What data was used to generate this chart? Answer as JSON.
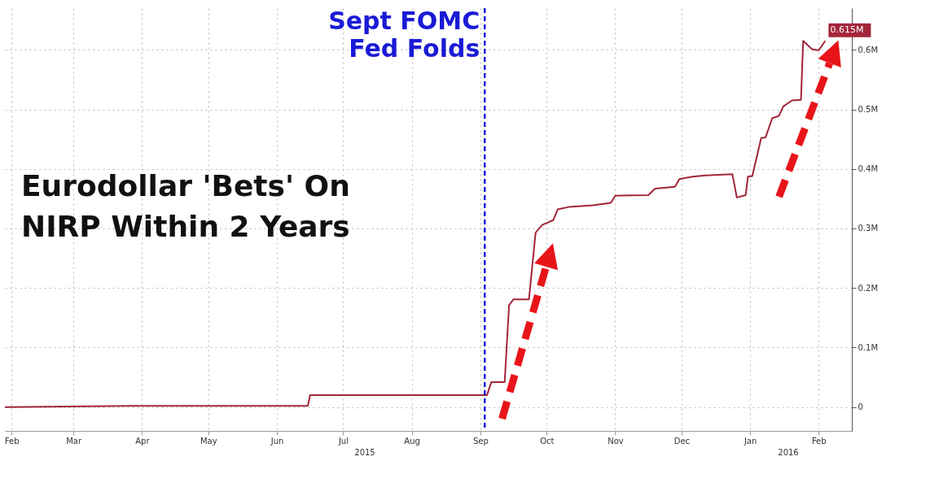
{
  "chart_data": {
    "type": "line",
    "title": "Eurodollar 'Bets' On\nNIRP Within 2 Years",
    "x": [
      "2015-02-12",
      "2015-04-10",
      "2015-06-29",
      "2015-06-30",
      "2015-09-18",
      "2015-09-20",
      "2015-09-26",
      "2015-09-28",
      "2015-09-30",
      "2015-10-07",
      "2015-10-10",
      "2015-10-13",
      "2015-10-18",
      "2015-10-20",
      "2015-10-25",
      "2015-11-05",
      "2015-11-13",
      "2015-11-15",
      "2015-11-30",
      "2015-12-03",
      "2015-12-12",
      "2015-12-14",
      "2015-12-20",
      "2015-12-26",
      "2016-01-07",
      "2016-01-09",
      "2016-01-13",
      "2016-01-14",
      "2016-01-16",
      "2016-01-20",
      "2016-01-22",
      "2016-01-25",
      "2016-01-28",
      "2016-01-30",
      "2016-02-03",
      "2016-02-07",
      "2016-02-08",
      "2016-02-12",
      "2016-02-15",
      "2016-02-18"
    ],
    "series": [
      {
        "color": "#a3253a",
        "values": [
          0,
          0.002,
          0.002,
          0.02,
          0.02,
          0.042,
          0.042,
          0.171,
          0.181,
          0.181,
          0.293,
          0.306,
          0.314,
          0.332,
          0.336,
          0.339,
          0.343,
          0.355,
          0.356,
          0.367,
          0.37,
          0.383,
          0.387,
          0.389,
          0.391,
          0.352,
          0.356,
          0.387,
          0.388,
          0.452,
          0.453,
          0.485,
          0.489,
          0.505,
          0.515,
          0.516,
          0.615,
          0.601,
          0.599,
          0.615
        ],
        "value_labels": [
          null,
          null,
          null,
          null,
          null,
          null,
          null,
          null,
          null,
          null,
          null,
          null,
          null,
          null,
          null,
          null,
          null,
          null,
          null,
          null,
          null,
          null,
          null,
          null,
          null,
          null,
          null,
          null,
          null,
          null,
          null,
          null,
          null,
          null,
          null,
          null,
          null,
          null,
          null,
          "0.615M"
        ]
      }
    ],
    "xlim": [
      "2015-02-12",
      "2016-03-01"
    ],
    "xticks": [
      {
        "value": "2015-02-15",
        "label": "Feb"
      },
      {
        "value": "2015-03-15",
        "label": "Mar"
      },
      {
        "value": "2015-04-15",
        "label": "Apr"
      },
      {
        "value": "2015-05-15",
        "label": "May"
      },
      {
        "value": "2015-06-15",
        "label": "Jun"
      },
      {
        "value": "2015-07-15",
        "label": "Jul"
      },
      {
        "value": "2015-08-15",
        "label": "Aug"
      },
      {
        "value": "2015-09-15",
        "label": "Sep"
      },
      {
        "value": "2015-10-15",
        "label": "Oct"
      },
      {
        "value": "2015-11-15",
        "label": "Nov"
      },
      {
        "value": "2015-12-15",
        "label": "Dec"
      },
      {
        "value": "2016-01-15",
        "label": "Jan"
      },
      {
        "value": "2016-02-15",
        "label": "Feb"
      }
    ],
    "ylim": [
      -0.04,
      0.67
    ],
    "yticks": [
      0,
      {
        "value": 0.1,
        "label": "0.1M"
      },
      {
        "value": 0.2,
        "label": "0.2M"
      },
      {
        "value": 0.3,
        "label": "0.3M"
      },
      {
        "value": 0.4,
        "label": "0.4M"
      },
      {
        "value": 0.5,
        "label": "0.5M"
      },
      {
        "value": 0.6,
        "label": "0.6M"
      }
    ],
    "grid": true,
    "ref_lines": [
      {
        "axis": "x",
        "value": "2015-09-17",
        "label": "Sept FOMC\nFed Folds",
        "color": "#1a1ad6",
        "line_style": "dashed"
      }
    ],
    "annotations": [
      "2015",
      "2016"
    ]
  }
}
